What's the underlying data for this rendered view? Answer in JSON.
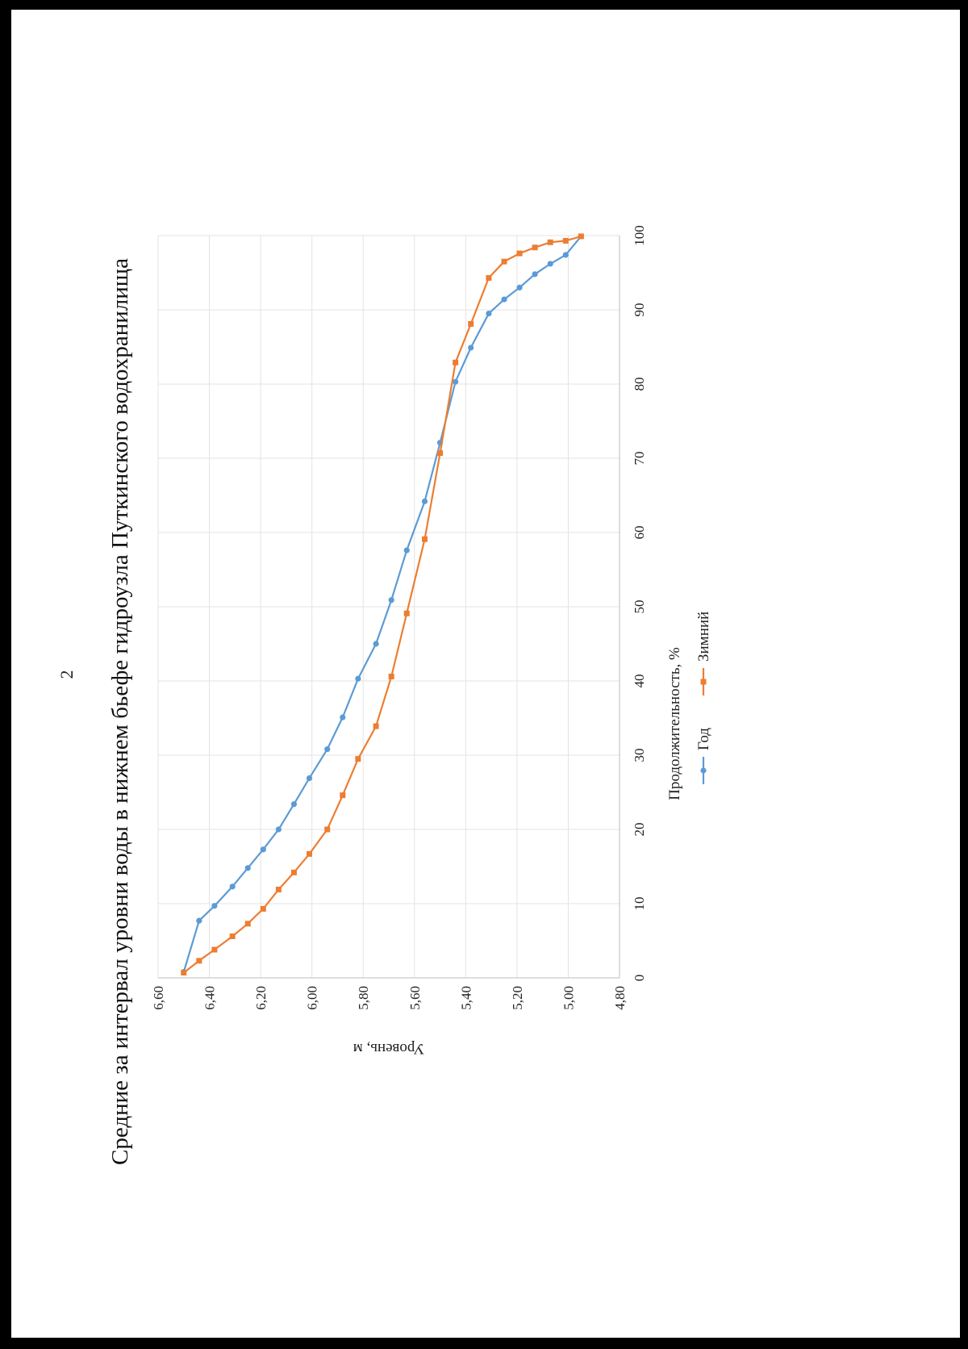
{
  "page": {
    "number": "2"
  },
  "chart_data": {
    "type": "line",
    "title": "Средние за интервал уровни воды в нижнем бьефе гидроузла Путкинского водохранилища",
    "xlabel": "Продолжительность, %",
    "ylabel": "Уровень, м",
    "xlim": [
      0,
      100
    ],
    "ylim": [
      4.8,
      6.6
    ],
    "x_ticks": [
      "0",
      "10",
      "20",
      "30",
      "40",
      "50",
      "60",
      "70",
      "80",
      "90",
      "100"
    ],
    "y_ticks": [
      "6,60",
      "6,40",
      "6,20",
      "6,00",
      "5,80",
      "5,60",
      "5,40",
      "5,20",
      "5,00",
      "4,80"
    ],
    "grid": true,
    "legend_position": "bottom",
    "orientation": "page rotated 90° counter-clockwise",
    "series": [
      {
        "name": "Год",
        "color": "#5b9bd5",
        "marker": "circle",
        "x": [
          0.8,
          7.7,
          9.7,
          12.3,
          14.8,
          17.3,
          20.0,
          23.4,
          26.9,
          30.8,
          35.1,
          40.3,
          45.0,
          50.9,
          57.6,
          64.2,
          72.1,
          80.3,
          84.9,
          89.5,
          91.4,
          93.0,
          94.8,
          96.2,
          97.4,
          99.9
        ],
        "y": [
          6.5,
          6.44,
          6.38,
          6.31,
          6.25,
          6.19,
          6.13,
          6.07,
          6.01,
          5.94,
          5.88,
          5.82,
          5.75,
          5.69,
          5.63,
          5.56,
          5.5,
          5.44,
          5.38,
          5.31,
          5.25,
          5.19,
          5.13,
          5.07,
          5.01,
          4.95
        ]
      },
      {
        "name": "Зимний",
        "color": "#ed7d31",
        "marker": "square",
        "x": [
          0.7,
          2.3,
          3.8,
          5.6,
          7.3,
          9.3,
          11.9,
          14.2,
          16.7,
          20.0,
          24.6,
          29.5,
          33.9,
          40.6,
          49.1,
          59.1,
          70.7,
          82.9,
          88.1,
          94.3,
          96.5,
          97.6,
          98.4,
          99.1,
          99.3,
          99.9
        ],
        "y": [
          6.5,
          6.44,
          6.38,
          6.31,
          6.25,
          6.19,
          6.13,
          6.07,
          6.01,
          5.94,
          5.88,
          5.82,
          5.75,
          5.69,
          5.63,
          5.56,
          5.5,
          5.44,
          5.38,
          5.31,
          5.25,
          5.19,
          5.13,
          5.07,
          5.01,
          4.95
        ]
      }
    ]
  }
}
